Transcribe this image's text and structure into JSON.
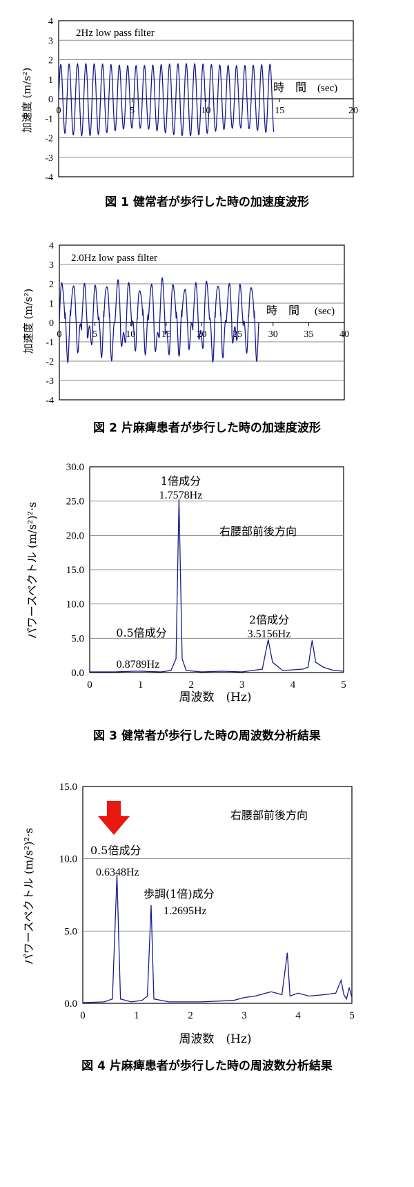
{
  "figures": [
    {
      "caption": "図 1 健常者が歩行した時の加速度波形",
      "chart_data": {
        "type": "line",
        "annotation": "2Hz low pass filter",
        "ylabel": "加速度 (m/s²)",
        "xlabel_parts": [
          "時　間",
          "(sec)"
        ],
        "xlim": [
          0,
          20
        ],
        "ylim": [
          -4,
          4
        ],
        "x_ticks": [
          0,
          5,
          10,
          15,
          20
        ],
        "y_ticks": [
          4,
          3,
          2,
          1,
          0,
          -1,
          -2,
          -3,
          -4
        ],
        "grid": true,
        "series": [
          {
            "wave": {
              "x_start": 0,
              "x_end": 14.6,
              "frequency_hz": 1.76,
              "amp_pos": [
                1.7,
                1.8
              ],
              "amp_neg": [
                -1.9,
                -1.5
              ]
            }
          }
        ]
      }
    },
    {
      "caption": "図 2 片麻痺患者が歩行した時の加速度波形",
      "chart_data": {
        "type": "line",
        "annotation": "2.0Hz low pass filter",
        "ylabel": "加速度 (m/s²)",
        "xlabel_parts": [
          "時　間",
          "(sec)"
        ],
        "xlim": [
          0,
          40
        ],
        "ylim": [
          -4,
          4
        ],
        "x_ticks": [
          0,
          5,
          10,
          15,
          20,
          25,
          30,
          35,
          40
        ],
        "y_ticks": [
          4,
          3,
          2,
          1,
          0,
          -1,
          -2,
          -3,
          -4
        ],
        "grid": true,
        "series": [
          {
            "wave": {
              "x_start": 0,
              "x_end": 28,
              "frequency_hz": 0.64,
              "amp_pos": [
                1.8,
                2.1
              ],
              "amp_neg": [
                -1.4,
                -0.9
              ]
            }
          }
        ]
      }
    },
    {
      "caption": "図 3 健常者が歩行した時の周波数分析結果",
      "chart_data": {
        "type": "line",
        "ylabel": "パワースペクトル (m/s²)²·s",
        "xlabel": "周波数　(Hz)",
        "xlim": [
          0,
          5
        ],
        "ylim": [
          0,
          30
        ],
        "x_ticks": [
          "0",
          "1",
          "2",
          "3",
          "4",
          "5"
        ],
        "y_ticks": [
          "30.0",
          "25.0",
          "20.0",
          "15.0",
          "10.0",
          "5.0",
          "0.0"
        ],
        "grid": true,
        "annotations": [
          "1倍成分",
          "1.7578Hz",
          "右腰部前後方向",
          "2倍成分",
          "3.5156Hz",
          "0.5倍成分",
          "0.8789Hz"
        ],
        "series": [
          {
            "x": [
              0,
              0.5,
              0.88,
              1.0,
              1.4,
              1.6,
              1.7,
              1.7578,
              1.82,
              1.9,
              2.2,
              2.6,
              3.0,
              3.4,
              3.5156,
              3.6,
              3.8,
              4.2,
              4.3,
              4.38,
              4.45,
              4.6,
              4.8,
              5.0
            ],
            "y": [
              0.1,
              0.1,
              0.2,
              0.2,
              0.1,
              0.3,
              2.0,
              25.3,
              2.0,
              0.3,
              0.1,
              0.2,
              0.1,
              0.5,
              4.8,
              1.5,
              0.3,
              0.5,
              0.8,
              4.7,
              1.5,
              0.8,
              0.3,
              0.2
            ]
          }
        ]
      }
    },
    {
      "caption": "図 4 片麻痺患者が歩行した時の周波数分析結果",
      "chart_data": {
        "type": "line",
        "ylabel": "パワースペクトル (m/s²)²·s",
        "xlabel": "周波数　(Hz)",
        "xlim": [
          0,
          5
        ],
        "ylim": [
          0,
          15
        ],
        "x_ticks": [
          "0",
          "1",
          "2",
          "3",
          "4",
          "5"
        ],
        "y_ticks": [
          "15.0",
          "10.0",
          "5.0",
          "0.0"
        ],
        "grid": true,
        "annotations": [
          "右腰部前後方向",
          "0.5倍成分",
          "0.6348Hz",
          "歩調(1倍)成分",
          "1.2695Hz"
        ],
        "highlight_color": "#e8170f",
        "series": [
          {
            "x": [
              0,
              0.4,
              0.55,
              0.6348,
              0.7,
              0.9,
              1.1,
              1.2,
              1.2695,
              1.32,
              1.6,
              2.2,
              2.8,
              3.0,
              3.2,
              3.5,
              3.7,
              3.8,
              3.85,
              4.0,
              4.2,
              4.5,
              4.7,
              4.8,
              4.85,
              4.9,
              4.95,
              5.0
            ],
            "y": [
              0.05,
              0.1,
              0.3,
              8.9,
              0.3,
              0.1,
              0.2,
              0.5,
              6.8,
              0.3,
              0.1,
              0.1,
              0.2,
              0.4,
              0.5,
              0.8,
              0.6,
              3.5,
              0.5,
              0.7,
              0.5,
              0.6,
              0.7,
              1.6,
              0.6,
              0.3,
              1.1,
              0.4
            ]
          }
        ]
      }
    }
  ]
}
